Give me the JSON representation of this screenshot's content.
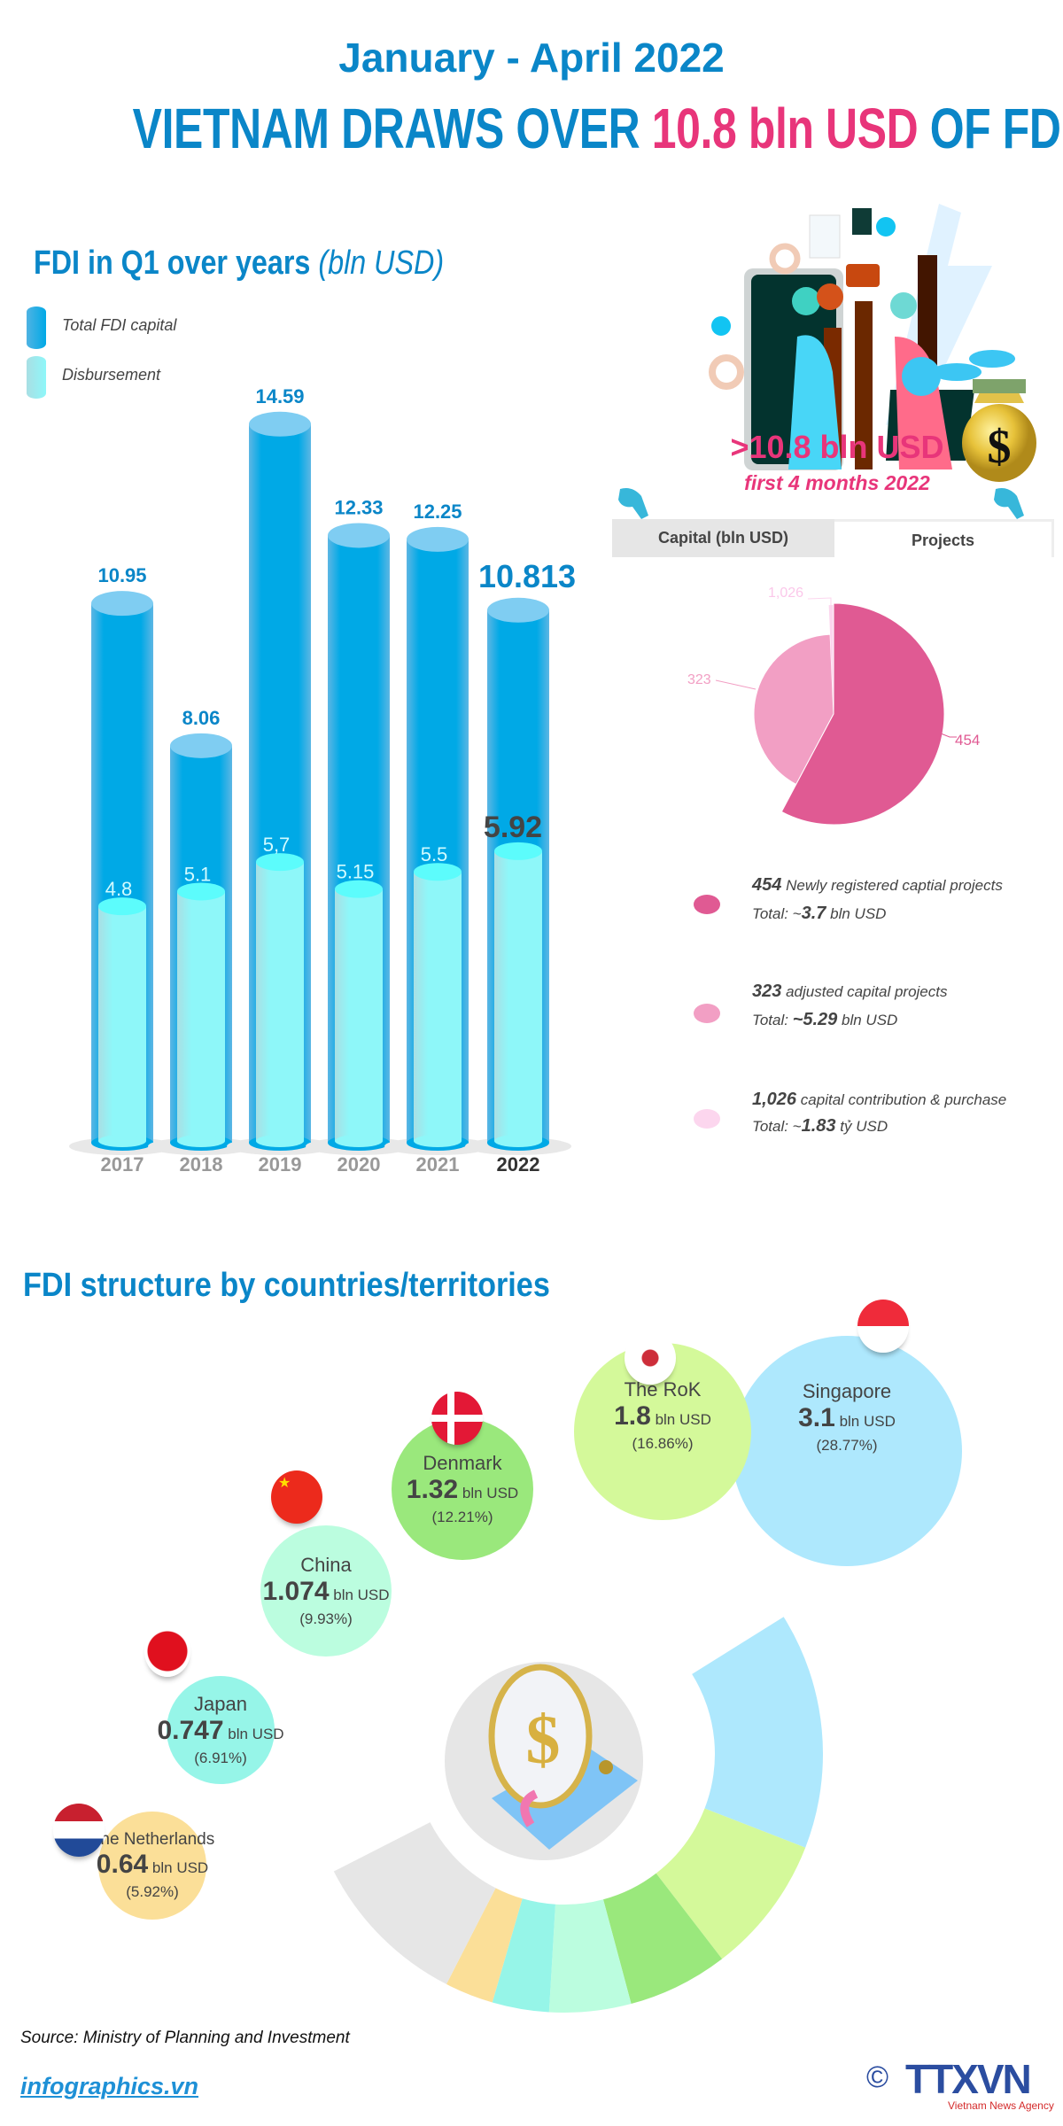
{
  "header": {
    "period": "January - April 2022",
    "title_pre": "VIETNAM DRAWS OVER ",
    "title_highlight": "10.8 bln USD",
    "title_post": " OF FDI",
    "highlight_color": "#e8357a",
    "accent_color": "#0a86c8"
  },
  "q1_section": {
    "title": "FDI in Q1 over years ",
    "title_unit": "(bln USD)",
    "legend": [
      {
        "label": "Total FDI capital",
        "color": "#00a9e6"
      },
      {
        "label": "Disbursement",
        "color": "#8ef5f7"
      }
    ]
  },
  "summary": {
    "headline": ">10.8 bln USD",
    "subline": "first 4 months 2022",
    "tabs": [
      {
        "label": "Capital (bln USD)",
        "active": false
      },
      {
        "label": "Projects",
        "active": true
      }
    ],
    "icons": [
      "pointing-hand-icon",
      "money-bag-icon"
    ]
  },
  "projects_list": [
    {
      "count": "454",
      "desc": " Newly registered captial projects",
      "total_prefix": "Total: ~",
      "total": "3.7",
      "total_unit": " bln USD",
      "color": "#e05a93"
    },
    {
      "count": "323",
      "desc": " adjusted capital projects",
      "total_prefix": "Total: ",
      "total": "~5.29",
      "total_unit": " bln USD",
      "color": "#f29fc4"
    },
    {
      "count": "1,026",
      "desc": " capital contribution & purchase",
      "total_prefix": "Total: ~",
      "total": "1.83",
      "total_unit": " tỷ USD",
      "color": "#fcd6ee"
    }
  ],
  "countries_section": {
    "title": "FDI structure by countries/territories",
    "countries": [
      {
        "name": "Singapore",
        "value": "3.1",
        "unit": " bln USD",
        "pct": "(28.77%)",
        "color": "#aee8fd"
      },
      {
        "name": "The RoK",
        "value": "1.8",
        "unit": " bln USD",
        "pct": "(16.86%)",
        "color": "#d4f99a"
      },
      {
        "name": "Denmark",
        "value": "1.32",
        "unit": " bln USD",
        "pct": "(12.21%)",
        "color": "#9ae87c"
      },
      {
        "name": "China",
        "value": "1.074",
        "unit": " bln USD",
        "pct": "(9.93%)",
        "color": "#bbfddf"
      },
      {
        "name": "Japan",
        "value": "0.747",
        "unit": " bln USD",
        "pct": "(6.91%)",
        "color": "#96f5e8"
      },
      {
        "name": "The Netherlands",
        "value": "0.64",
        "unit": " bln USD",
        "pct": "(5.92%)",
        "color": "#fbdf98"
      }
    ]
  },
  "footer": {
    "source": "Source: Ministry of Planning and Investment",
    "website": "infographics.vn",
    "logo_text": "TTXVN",
    "logo_sub": "Vietnam News Agency",
    "copyright": "©"
  },
  "chart_data": [
    {
      "type": "bar",
      "title": "FDI in Q1 over years (bln USD)",
      "categories": [
        "2017",
        "2018",
        "2019",
        "2020",
        "2021",
        "2022"
      ],
      "series": [
        {
          "name": "Total FDI capital",
          "values": [
            10.95,
            8.06,
            14.59,
            12.33,
            12.25,
            10.813
          ],
          "labels": [
            "10.95",
            "8.06",
            "14.59",
            "12.33",
            "12.25",
            "10.813"
          ]
        },
        {
          "name": "Disbursement",
          "values": [
            4.8,
            5.1,
            5.7,
            5.15,
            5.5,
            5.92
          ],
          "labels": [
            "4.8",
            "5.1",
            "5,7",
            "5.15",
            "5.5",
            "5.92"
          ]
        }
      ],
      "highlight_category": "2022"
    },
    {
      "type": "pie",
      "categories": [
        "454",
        "323",
        "1,026"
      ],
      "values": [
        454,
        323,
        1026
      ],
      "colors": [
        "#e05a93",
        "#f29fc4",
        "#fcd6ee"
      ]
    },
    {
      "type": "pie",
      "style": "half-donut",
      "categories": [
        "Singapore",
        "The RoK",
        "Denmark",
        "China",
        "Japan",
        "The Netherlands",
        ""
      ],
      "values": [
        28.77,
        16.86,
        12.21,
        9.93,
        6.91,
        5.92,
        19.4
      ],
      "colors": [
        "#aee8fd",
        "#d4f99a",
        "#9ae87c",
        "#bbfddf",
        "#96f5e8",
        "#fbdf98",
        "#e6e6e6"
      ]
    }
  ]
}
